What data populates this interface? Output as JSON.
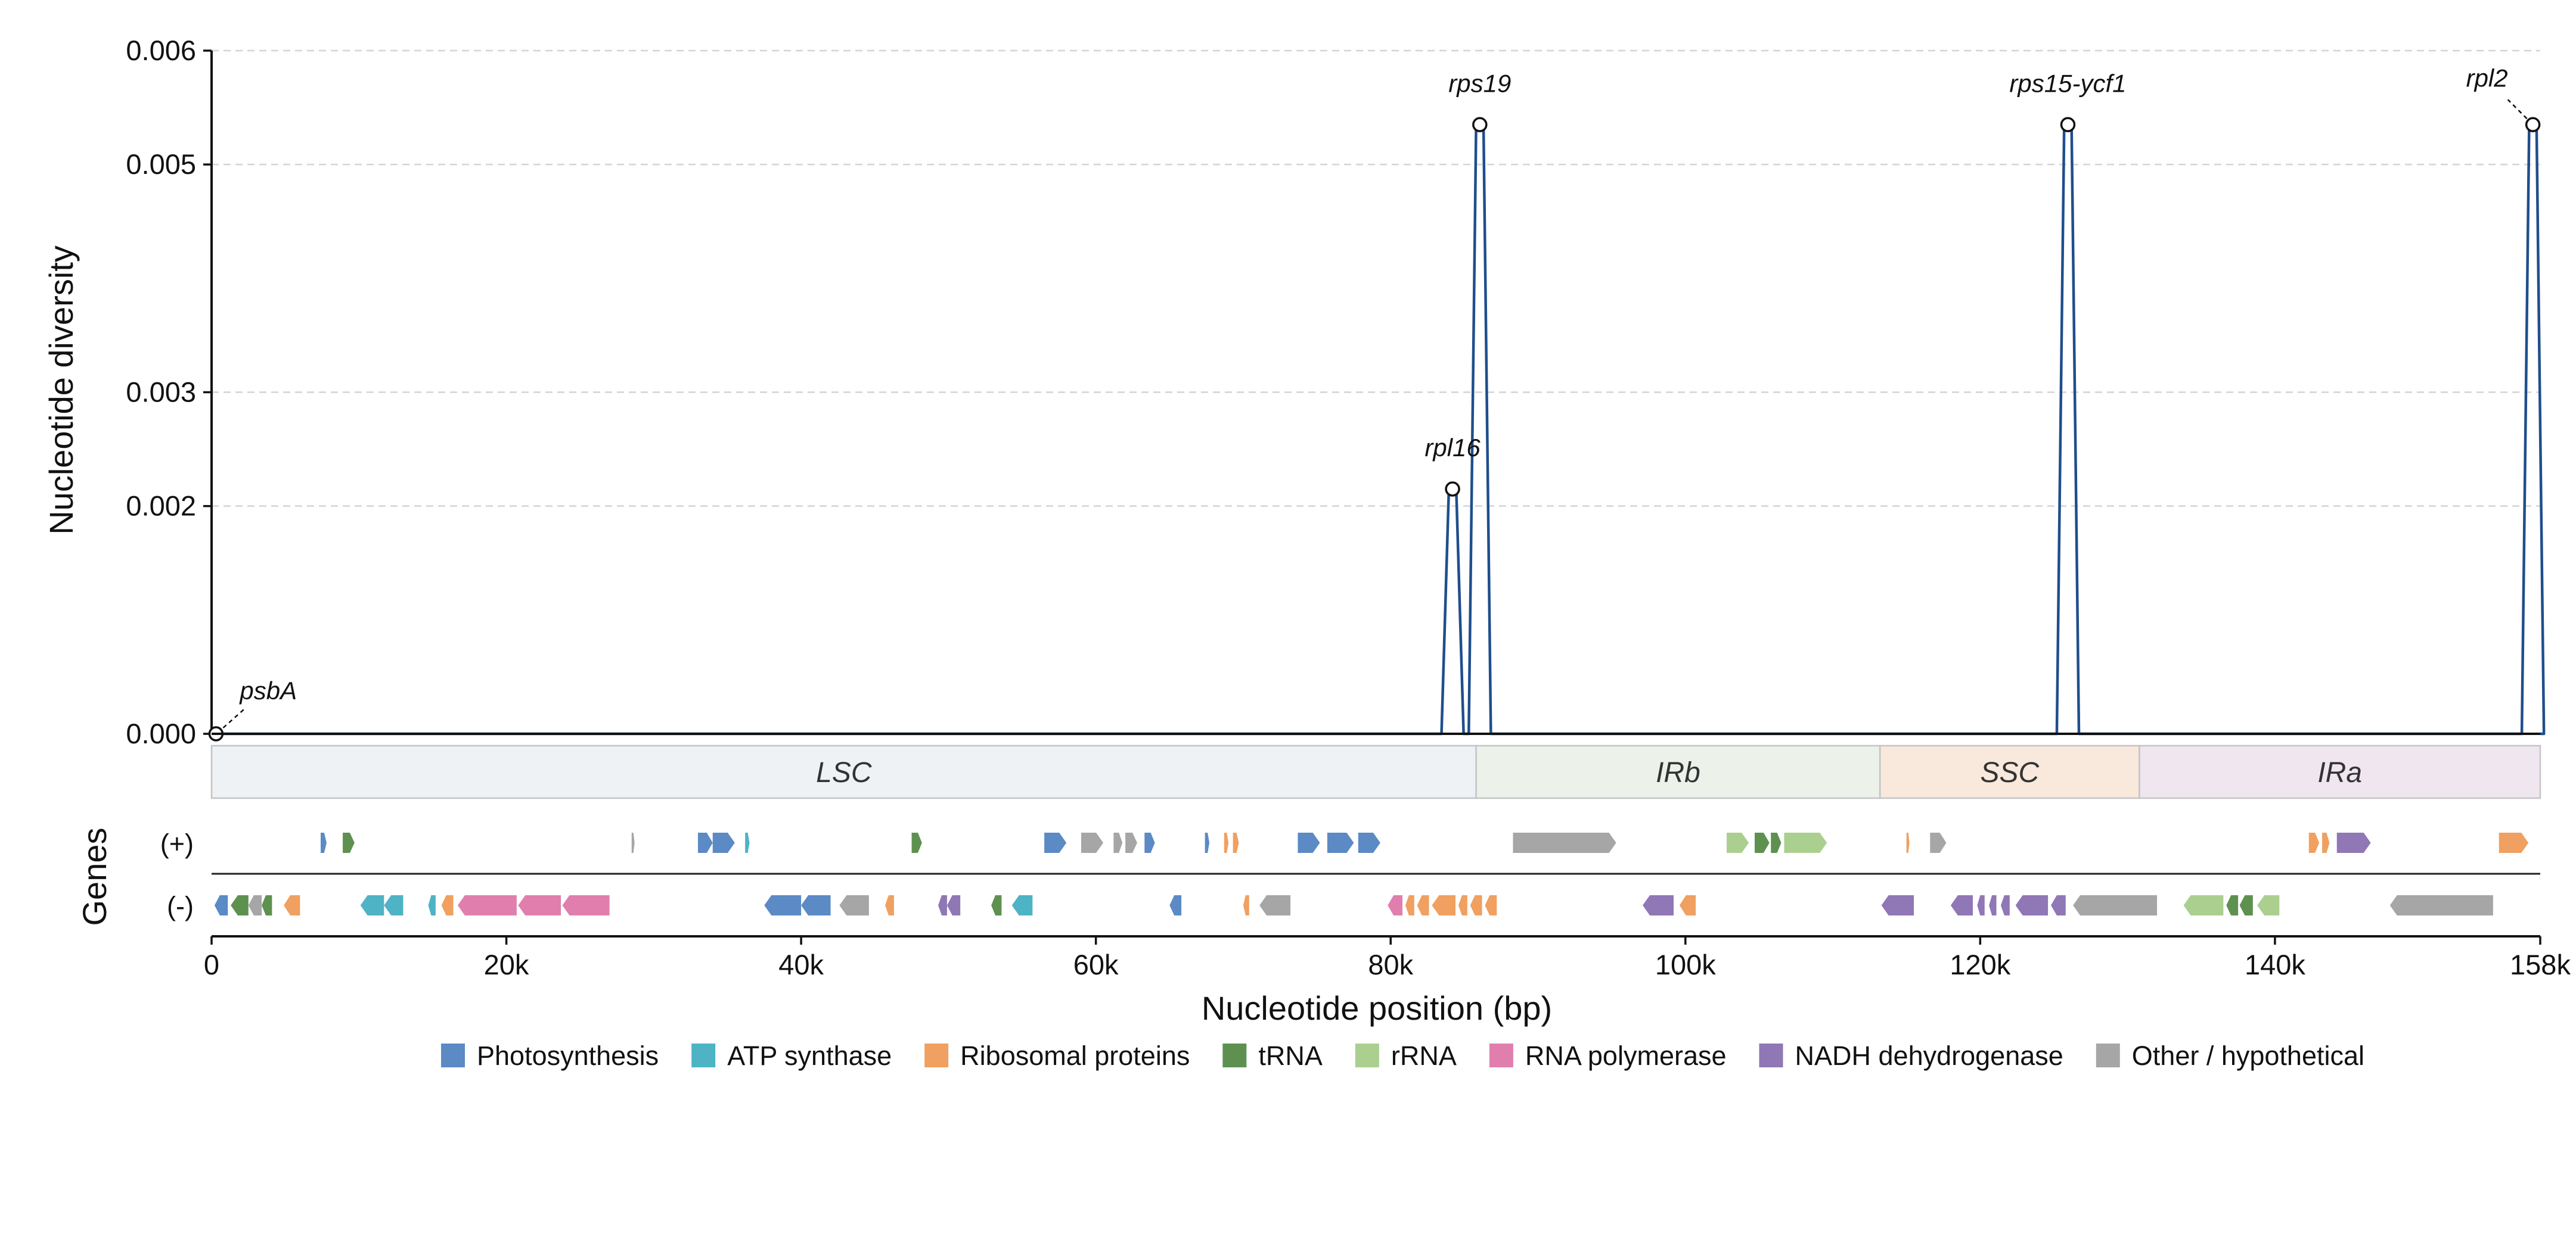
{
  "chart_data": {
    "type": "line",
    "ylabel": "Nucleotide diversity",
    "xlabel": "Nucleotide position (bp)",
    "xlim": [
      0,
      158000
    ],
    "ylim": [
      0,
      0.006
    ],
    "y_ticks": [
      0.0,
      0.002,
      0.003,
      0.005,
      0.006
    ],
    "y_tick_labels": [
      "0.000",
      "0.002",
      "0.003",
      "0.005",
      "0.006"
    ],
    "x_ticks": [
      0,
      20000,
      40000,
      60000,
      80000,
      100000,
      120000,
      140000,
      158000
    ],
    "x_tick_labels": [
      "0",
      "20k",
      "40k",
      "60k",
      "80k",
      "100k",
      "120k",
      "140k",
      "158k"
    ],
    "grid": "horizontal dashed",
    "line_color": "#1f4e8c",
    "peaks": [
      {
        "x": 300,
        "y": 0.0
      },
      {
        "x": 84200,
        "y": 0.00215
      },
      {
        "x": 86050,
        "y": 0.00535
      },
      {
        "x": 125950,
        "y": 0.00535
      },
      {
        "x": 157500,
        "y": 0.00535
      }
    ],
    "annotations": [
      {
        "label": "psbA",
        "x": 300,
        "y": 0.0
      },
      {
        "label": "rpl16",
        "x": 84200,
        "y": 0.00215
      },
      {
        "label": "rps19",
        "x": 86050,
        "y": 0.00535
      },
      {
        "label": "rps15-ycf1",
        "x": 125950,
        "y": 0.00535
      },
      {
        "label": "rpl2",
        "x": 157500,
        "y": 0.00535
      }
    ],
    "regions": [
      {
        "name": "LSC",
        "start": 0,
        "end": 85800,
        "color": "#eef2f5"
      },
      {
        "name": "IRb",
        "start": 85800,
        "end": 113200,
        "color": "#ecf2ea"
      },
      {
        "name": "SSC",
        "start": 113200,
        "end": 130800,
        "color": "#f8e9dc"
      },
      {
        "name": "IRa",
        "start": 130800,
        "end": 158000,
        "color": "#f0e6f0"
      }
    ],
    "genes_axis_label": "Genes",
    "strand_labels": [
      "(+)",
      "(-)"
    ],
    "legend": [
      {
        "name": "Photosynthesis",
        "color": "#5b8ac5"
      },
      {
        "name": "ATP synthase",
        "color": "#4eb3c4"
      },
      {
        "name": "Ribosomal proteins",
        "color": "#f0a060"
      },
      {
        "name": "tRNA",
        "color": "#5e9150"
      },
      {
        "name": "rRNA",
        "color": "#abcf8e"
      },
      {
        "name": "RNA polymerase",
        "color": "#e07fae"
      },
      {
        "name": "NADH dehydrogenase",
        "color": "#9077b5"
      },
      {
        "name": "Other / hypothetical",
        "color": "#a6a6a6"
      }
    ],
    "genes_plus": [
      {
        "s": 7400,
        "e": 7800,
        "c": "Photosynthesis"
      },
      {
        "s": 8900,
        "e": 9700,
        "c": "tRNA"
      },
      {
        "s": 28500,
        "e": 28700,
        "c": "Other / hypothetical"
      },
      {
        "s": 33000,
        "e": 34000,
        "c": "Photosynthesis"
      },
      {
        "s": 34000,
        "e": 35500,
        "c": "Photosynthesis"
      },
      {
        "s": 36200,
        "e": 36500,
        "c": "ATP synthase"
      },
      {
        "s": 47500,
        "e": 48200,
        "c": "tRNA"
      },
      {
        "s": 56500,
        "e": 58000,
        "c": "Photosynthesis"
      },
      {
        "s": 59000,
        "e": 60500,
        "c": "Other / hypothetical"
      },
      {
        "s": 61200,
        "e": 61800,
        "c": "Other / hypothetical"
      },
      {
        "s": 62000,
        "e": 62800,
        "c": "Other / hypothetical"
      },
      {
        "s": 63300,
        "e": 64000,
        "c": "Photosynthesis"
      },
      {
        "s": 67400,
        "e": 67700,
        "c": "Photosynthesis"
      },
      {
        "s": 68700,
        "e": 69000,
        "c": "Ribosomal proteins"
      },
      {
        "s": 69300,
        "e": 69700,
        "c": "Ribosomal proteins"
      },
      {
        "s": 73700,
        "e": 75200,
        "c": "Photosynthesis"
      },
      {
        "s": 75700,
        "e": 77500,
        "c": "Photosynthesis"
      },
      {
        "s": 77800,
        "e": 79300,
        "c": "Photosynthesis"
      },
      {
        "s": 88300,
        "e": 95300,
        "c": "Other / hypothetical"
      },
      {
        "s": 102800,
        "e": 104300,
        "c": "rRNA"
      },
      {
        "s": 104700,
        "e": 105700,
        "c": "tRNA"
      },
      {
        "s": 105800,
        "e": 106500,
        "c": "tRNA"
      },
      {
        "s": 106700,
        "e": 109600,
        "c": "rRNA"
      },
      {
        "s": 115000,
        "e": 115200,
        "c": "Ribosomal proteins"
      },
      {
        "s": 116600,
        "e": 117700,
        "c": "Other / hypothetical"
      },
      {
        "s": 142300,
        "e": 143000,
        "c": "Ribosomal proteins"
      },
      {
        "s": 143200,
        "e": 143700,
        "c": "Ribosomal proteins"
      },
      {
        "s": 144200,
        "e": 146500,
        "c": "NADH dehydrogenase"
      },
      {
        "s": 155200,
        "e": 157200,
        "c": "Ribosomal proteins"
      }
    ],
    "genes_minus": [
      {
        "s": 200,
        "e": 1100,
        "c": "Photosynthesis"
      },
      {
        "s": 1300,
        "e": 2500,
        "c": "tRNA"
      },
      {
        "s": 2500,
        "e": 3400,
        "c": "Other / hypothetical"
      },
      {
        "s": 3400,
        "e": 4100,
        "c": "tRNA"
      },
      {
        "s": 4900,
        "e": 6000,
        "c": "Ribosomal proteins"
      },
      {
        "s": 10100,
        "e": 11700,
        "c": "ATP synthase"
      },
      {
        "s": 11700,
        "e": 13000,
        "c": "ATP synthase"
      },
      {
        "s": 14700,
        "e": 15200,
        "c": "ATP synthase"
      },
      {
        "s": 15600,
        "e": 16400,
        "c": "Ribosomal proteins"
      },
      {
        "s": 16700,
        "e": 20700,
        "c": "RNA polymerase"
      },
      {
        "s": 20800,
        "e": 23700,
        "c": "RNA polymerase"
      },
      {
        "s": 23800,
        "e": 27000,
        "c": "RNA polymerase"
      },
      {
        "s": 37500,
        "e": 40000,
        "c": "Photosynthesis"
      },
      {
        "s": 40000,
        "e": 42000,
        "c": "Photosynthesis"
      },
      {
        "s": 42600,
        "e": 44600,
        "c": "Other / hypothetical"
      },
      {
        "s": 45700,
        "e": 46300,
        "c": "Ribosomal proteins"
      },
      {
        "s": 49300,
        "e": 49900,
        "c": "NADH dehydrogenase"
      },
      {
        "s": 49900,
        "e": 50800,
        "c": "NADH dehydrogenase"
      },
      {
        "s": 52900,
        "e": 53600,
        "c": "tRNA"
      },
      {
        "s": 54300,
        "e": 55700,
        "c": "ATP synthase"
      },
      {
        "s": 65000,
        "e": 65800,
        "c": "Photosynthesis"
      },
      {
        "s": 70000,
        "e": 70400,
        "c": "Ribosomal proteins"
      },
      {
        "s": 71100,
        "e": 73200,
        "c": "Other / hypothetical"
      },
      {
        "s": 79800,
        "e": 80800,
        "c": "RNA polymerase"
      },
      {
        "s": 81000,
        "e": 81600,
        "c": "Ribosomal proteins"
      },
      {
        "s": 81800,
        "e": 82600,
        "c": "Ribosomal proteins"
      },
      {
        "s": 82800,
        "e": 84400,
        "c": "Ribosomal proteins"
      },
      {
        "s": 84600,
        "e": 85200,
        "c": "Ribosomal proteins"
      },
      {
        "s": 85400,
        "e": 86200,
        "c": "Ribosomal proteins"
      },
      {
        "s": 86400,
        "e": 87200,
        "c": "Ribosomal proteins"
      },
      {
        "s": 97100,
        "e": 99200,
        "c": "NADH dehydrogenase"
      },
      {
        "s": 99600,
        "e": 100700,
        "c": "Ribosomal proteins"
      },
      {
        "s": 113300,
        "e": 115500,
        "c": "NADH dehydrogenase"
      },
      {
        "s": 118000,
        "e": 119500,
        "c": "NADH dehydrogenase"
      },
      {
        "s": 119800,
        "e": 120300,
        "c": "NADH dehydrogenase"
      },
      {
        "s": 120600,
        "e": 121100,
        "c": "NADH dehydrogenase"
      },
      {
        "s": 121400,
        "e": 122000,
        "c": "NADH dehydrogenase"
      },
      {
        "s": 122400,
        "e": 124600,
        "c": "NADH dehydrogenase"
      },
      {
        "s": 124800,
        "e": 125800,
        "c": "NADH dehydrogenase"
      },
      {
        "s": 126300,
        "e": 132000,
        "c": "Other / hypothetical"
      },
      {
        "s": 133800,
        "e": 136500,
        "c": "rRNA"
      },
      {
        "s": 136700,
        "e": 137500,
        "c": "tRNA"
      },
      {
        "s": 137600,
        "e": 138500,
        "c": "tRNA"
      },
      {
        "s": 138800,
        "e": 140300,
        "c": "rRNA"
      },
      {
        "s": 147800,
        "e": 154800,
        "c": "Other / hypothetical"
      }
    ]
  }
}
